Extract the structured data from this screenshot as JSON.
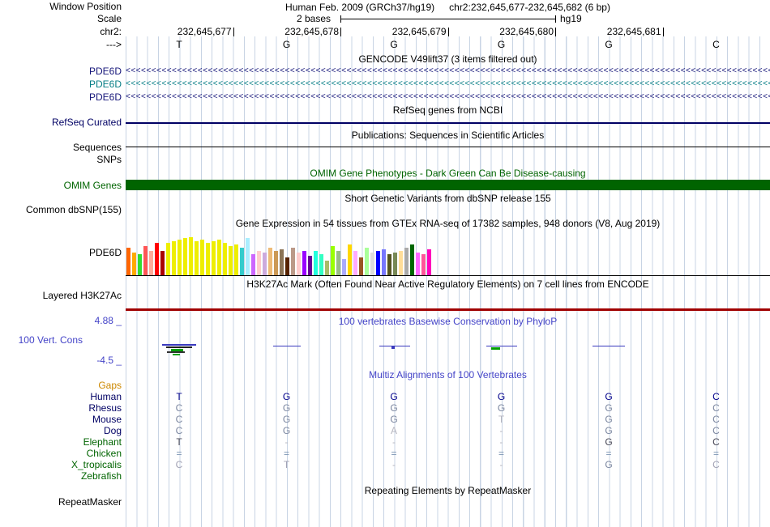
{
  "window": {
    "assembly": "Human Feb. 2009 (GRCh37/hg19)",
    "position": "chr2:232,645,677-232,645,682 (6 bp)"
  },
  "ruler": {
    "window_label": "Window Position",
    "scale_label": "Scale",
    "chrom_label": "chr2:",
    "strand_label": "--->",
    "scale_text": "2 bases",
    "genome": "hg19",
    "coordinates": [
      "232,645,677",
      "232,645,678",
      "232,645,679",
      "232,645,680",
      "232,645,681"
    ],
    "bases": [
      "T",
      "G",
      "G",
      "G",
      "G",
      "C"
    ]
  },
  "tracks": {
    "gencode": {
      "title": "GENCODE V49lift37 (3 items filtered out)",
      "genes": [
        {
          "label": "PDE6D",
          "color": "#16167A"
        },
        {
          "label": "PDE6D",
          "color": "#067E86"
        },
        {
          "label": "PDE6D",
          "color": "#16167A"
        }
      ]
    },
    "refseq": {
      "title": "RefSeq genes from NCBI",
      "label": "RefSeq Curated",
      "color": "#000064"
    },
    "publications": {
      "title": "Publications: Sequences in Scientific Articles",
      "label": "Sequences",
      "snps_label": "SNPs"
    },
    "omim": {
      "title": "OMIM Gene Phenotypes - Dark Green Can Be Disease-causing",
      "label": "OMIM Genes",
      "color": "#006400"
    },
    "dbsnp": {
      "title": "Short Genetic Variants from dbSNP release 155",
      "label": "Common dbSNP(155)"
    },
    "gtex": {
      "title": "Gene Expression in 54 tissues from GTEx RNA-seq of 17382 samples, 948 donors (V8, Aug 2019)",
      "label": "PDE6D",
      "bars": [
        [
          34,
          "#FF6600"
        ],
        [
          28,
          "#FFAA00"
        ],
        [
          26,
          "#33DD33"
        ],
        [
          36,
          "#FF5555"
        ],
        [
          30,
          "#FFAA99"
        ],
        [
          40,
          "#FF0000"
        ],
        [
          30,
          "#AA0000"
        ],
        [
          40,
          "#EEEE00"
        ],
        [
          42,
          "#EEEE00"
        ],
        [
          44,
          "#EEEE00"
        ],
        [
          46,
          "#EEEE00"
        ],
        [
          47,
          "#EEEE00"
        ],
        [
          42,
          "#EEEE00"
        ],
        [
          44,
          "#EEEE00"
        ],
        [
          40,
          "#EEEE00"
        ],
        [
          42,
          "#EEEE00"
        ],
        [
          44,
          "#EEEE00"
        ],
        [
          40,
          "#EEEE00"
        ],
        [
          36,
          "#EEEE00"
        ],
        [
          38,
          "#EEEE00"
        ],
        [
          34,
          "#33CCCC"
        ],
        [
          46,
          "#AAEEFF"
        ],
        [
          26,
          "#CC66FF"
        ],
        [
          30,
          "#FFCCCC"
        ],
        [
          28,
          "#CCAADD"
        ],
        [
          34,
          "#EEBB77"
        ],
        [
          30,
          "#CC9955"
        ],
        [
          32,
          "#8B7355"
        ],
        [
          22,
          "#552200"
        ],
        [
          34,
          "#BB9988"
        ],
        [
          28,
          "#FFCCCC"
        ],
        [
          30,
          "#9900FF"
        ],
        [
          24,
          "#660099"
        ],
        [
          30,
          "#22FFDD"
        ],
        [
          26,
          "#33FFC2"
        ],
        [
          18,
          "#AABB66"
        ],
        [
          36,
          "#99FF00"
        ],
        [
          30,
          "#99BB88"
        ],
        [
          20,
          "#AAAAFF"
        ],
        [
          38,
          "#FFD700"
        ],
        [
          30,
          "#FFAAFF"
        ],
        [
          22,
          "#995522"
        ],
        [
          34,
          "#AAFF99"
        ],
        [
          28,
          "#DDDDDD"
        ],
        [
          30,
          "#0000FF"
        ],
        [
          32,
          "#7777FF"
        ],
        [
          26,
          "#555522"
        ],
        [
          28,
          "#778855"
        ],
        [
          30,
          "#FFDD99"
        ],
        [
          34,
          "#AAAAAA"
        ],
        [
          38,
          "#006600"
        ],
        [
          28,
          "#FF66FF"
        ],
        [
          26,
          "#FF5599"
        ],
        [
          32,
          "#FF00BB"
        ]
      ]
    },
    "h3k27ac": {
      "title": "H3K27Ac Mark (Often Found Near Active Regulatory Elements) on 7 cell lines from ENCODE",
      "label": "Layered H3K27Ac",
      "color": "#A00000"
    },
    "phylop": {
      "title": "100 vertebrates Basewise Conservation by PhyloP",
      "title_color": "#4444C8",
      "label": "100 Vert. Cons",
      "label_color": "#4444C8",
      "max_label": "4.88 _",
      "min_label": "-4.5 _",
      "marks": [
        [
          200,
          425,
          42,
          2,
          "#3A3ABE"
        ],
        [
          205,
          428,
          32,
          2,
          "#222222"
        ],
        [
          211,
          431,
          15,
          3,
          "#00A000"
        ],
        [
          206,
          434,
          22,
          2,
          "#333333"
        ],
        [
          213,
          437,
          9,
          2,
          "#00A000"
        ],
        [
          337,
          427,
          34,
          1,
          "#3A3ABE"
        ],
        [
          468,
          427,
          38,
          1,
          "#3A3ABE"
        ],
        [
          483,
          428,
          4,
          3,
          "#3A3ABE"
        ],
        [
          600,
          427,
          38,
          1,
          "#3A3ABE"
        ],
        [
          606,
          429,
          11,
          3,
          "#00A000"
        ],
        [
          731,
          427,
          40,
          1,
          "#3A3ABE"
        ]
      ]
    },
    "multiz": {
      "title": "Multiz Alignments of 100 Vertebrates",
      "title_color": "#4444C8",
      "rows": [
        {
          "name": "Gaps",
          "color": "#CC8800",
          "cells": []
        },
        {
          "name": "Human",
          "color": "#000064",
          "cells": [
            {
              "ch": "T",
              "c": "#00008B"
            },
            {
              "ch": "G",
              "c": "#00008B"
            },
            {
              "ch": "G",
              "c": "#00008B"
            },
            {
              "ch": "G",
              "c": "#00008B"
            },
            {
              "ch": "G",
              "c": "#00008B"
            },
            {
              "ch": "C",
              "c": "#00008B"
            }
          ]
        },
        {
          "name": "Rhesus",
          "color": "#000064",
          "cells": [
            {
              "ch": "C",
              "c": "#7C87A0"
            },
            {
              "ch": "G",
              "c": "#7C87A0"
            },
            {
              "ch": "G",
              "c": "#7C87A0"
            },
            {
              "ch": "G",
              "c": "#7C87A0"
            },
            {
              "ch": "G",
              "c": "#7C87A0"
            },
            {
              "ch": "C",
              "c": "#7C87A0"
            }
          ]
        },
        {
          "name": "Mouse",
          "color": "#000064",
          "cells": [
            {
              "ch": "C",
              "c": "#7C87A0"
            },
            {
              "ch": "G",
              "c": "#7C87A0"
            },
            {
              "ch": "G",
              "c": "#7C87A0"
            },
            {
              "ch": "T",
              "c": "#B6B6C0"
            },
            {
              "ch": "G",
              "c": "#7C87A0"
            },
            {
              "ch": "C",
              "c": "#7C87A0"
            }
          ]
        },
        {
          "name": "Dog",
          "color": "#000064",
          "cells": [
            {
              "ch": "C",
              "c": "#7C87A0"
            },
            {
              "ch": "G",
              "c": "#7C87A0"
            },
            {
              "ch": "A",
              "c": "#B6B6C0"
            },
            {
              "ch": "-",
              "c": "#B6B6C0"
            },
            {
              "ch": "G",
              "c": "#7C87A0"
            },
            {
              "ch": "C",
              "c": "#7C87A0"
            }
          ]
        },
        {
          "name": "Elephant",
          "color": "#006400",
          "cells": [
            {
              "ch": "T",
              "c": "#4A4A58"
            },
            {
              "ch": "-",
              "c": "#B6B6C0"
            },
            {
              "ch": "-",
              "c": "#B6B6C0"
            },
            {
              "ch": "-",
              "c": "#B6B6C0"
            },
            {
              "ch": "G",
              "c": "#4A4A58"
            },
            {
              "ch": "C",
              "c": "#4A4A58"
            }
          ]
        },
        {
          "name": "Chicken",
          "color": "#006400",
          "cells": [
            {
              "ch": "=",
              "c": "#7E96B4"
            },
            {
              "ch": "=",
              "c": "#7E96B4"
            },
            {
              "ch": "=",
              "c": "#7E96B4"
            },
            {
              "ch": "=",
              "c": "#7E96B4"
            },
            {
              "ch": "=",
              "c": "#7E96B4"
            },
            {
              "ch": "=",
              "c": "#7E96B4"
            }
          ]
        },
        {
          "name": "X_tropicalis",
          "color": "#006400",
          "cells": [
            {
              "ch": "C",
              "c": "#A2A2B4"
            },
            {
              "ch": "T",
              "c": "#A2A2B4"
            },
            {
              "ch": "-",
              "c": "#B6B6C0"
            },
            {
              "ch": "-",
              "c": "#B6B6C0"
            },
            {
              "ch": "G",
              "c": "#7C87A0"
            },
            {
              "ch": "C",
              "c": "#A2A2B4"
            }
          ]
        },
        {
          "name": "Zebrafish",
          "color": "#006400",
          "cells": []
        }
      ]
    },
    "repeatmasker": {
      "title": "Repeating Elements by RepeatMasker",
      "label": "RepeatMasker"
    }
  }
}
